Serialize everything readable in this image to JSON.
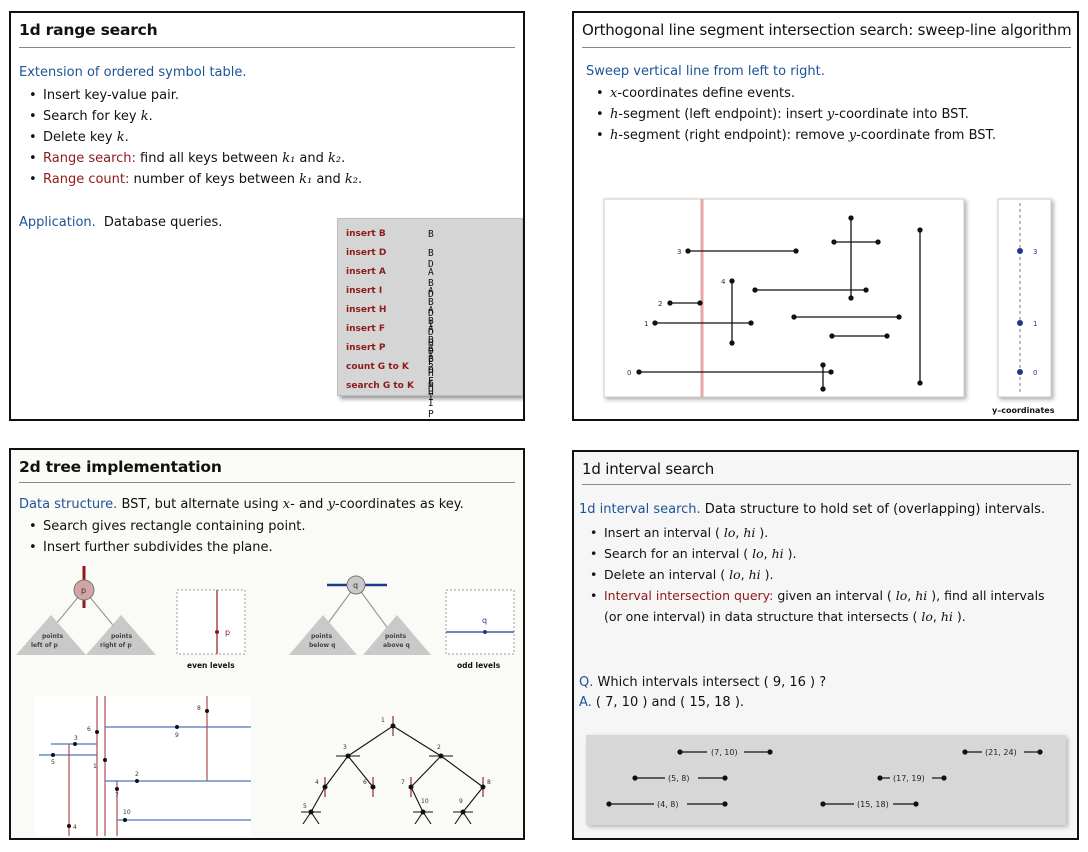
{
  "slide1": {
    "title": "1d range search",
    "lead": "Extension of ordered symbol table.",
    "bullets": [
      {
        "pre": "Insert key-value pair.",
        "k": "",
        "post": "",
        "red": ""
      },
      {
        "pre": "Search for key ",
        "k": "k",
        "post": ".",
        "red": ""
      },
      {
        "pre": "Delete key ",
        "k": "k",
        "post": ".",
        "red": ""
      },
      {
        "red": "Range search:",
        "pre": "  find all keys between ",
        "k": "k₁",
        "mid": " and ",
        "k2": "k₂",
        "post": "."
      },
      {
        "red": "Range count:",
        "pre": "  number of keys between ",
        "k": "k₁",
        "mid": " and ",
        "k2": "k₂",
        "post": "."
      }
    ],
    "app_label": "Application.",
    "app_text": "Database queries.",
    "ops": [
      {
        "cmd": "insert B",
        "res": "B"
      },
      {
        "cmd": "insert D",
        "res": "B D"
      },
      {
        "cmd": "insert A",
        "res": "A B D"
      },
      {
        "cmd": "insert I",
        "res": "A B D I"
      },
      {
        "cmd": "insert H",
        "res": "A B D H I"
      },
      {
        "cmd": "insert F",
        "res": "A B D F H I"
      },
      {
        "cmd": "insert P",
        "res": "A B D F H I P"
      },
      {
        "cmd": "count G to K",
        "res": "2"
      },
      {
        "cmd": "search G to K",
        "res": "H I"
      }
    ]
  },
  "slide2": {
    "title": "Orthogonal line segment intersection search:  sweep-line algorithm",
    "lead": "Sweep vertical line from left to right.",
    "b1_i": "x",
    "b1_text": "-coordinates define events.",
    "b2_i": "h",
    "b2_text1": "-segment (left endpoint):  insert ",
    "b2_i2": "y",
    "b2_text2": "-coordinate into BST.",
    "b3_i": "h",
    "b3_text1": "-segment (right endpoint):  remove ",
    "b3_i2": "y",
    "b3_text2": "-coordinate from BST.",
    "seg_labels": [
      "3",
      "4",
      "2",
      "1",
      "0"
    ],
    "axis_labels": [
      "3",
      "1",
      "0"
    ],
    "axis_caption": "y–coordinates"
  },
  "slide3": {
    "title": "2d tree implementation",
    "lead": "Data structure.",
    "lead_text1": "  BST, but alternate using ",
    "lead_i1": "x",
    "lead_text2": "- and ",
    "lead_i2": "y",
    "lead_text3": "-coordinates as key.",
    "bullets": [
      "Search gives rectangle containing point.",
      "Insert further subdivides the plane."
    ],
    "node_p": "p",
    "node_q": "q",
    "points_left": [
      "points",
      "left of p"
    ],
    "points_right": [
      "points",
      "right of p"
    ],
    "points_below": [
      "points",
      "below q"
    ],
    "points_above": [
      "points",
      "above q"
    ],
    "even_levels": "even levels",
    "odd_levels": "odd levels",
    "point_p": "p",
    "point_q": "q",
    "plane_labels": [
      "8",
      "6",
      "3",
      "9",
      "1",
      "2",
      "5",
      "7",
      "10",
      "4"
    ],
    "tree_labels": [
      "1",
      "3",
      "2",
      "4",
      "6",
      "7",
      "8",
      "5",
      "10",
      "9"
    ]
  },
  "slide4": {
    "title": "1d interval search",
    "lead": "1d interval search.",
    "lead_text": "  Data structure to hold set of (overlapping) intervals.",
    "b1": "Insert an interval ( ",
    "b2": "Search for an interval ( ",
    "b3": "Delete an interval ( ",
    "lo": "lo",
    "hi": "hi",
    "close": " ).",
    "b4_red": "Interval intersection query:",
    "b4_text": "  given an interval ( ",
    "b4_text2": " ), find all intervals",
    "b4_line2": "(or one interval) in data structure that intersects ( ",
    "q_label": "Q.",
    "q_text": "  Which intervals intersect ( 9,  16 ) ?",
    "a_label": "A.",
    "a_text": "  ( 7,  10 ) and ( 15,  18 ).",
    "intervals": [
      "(7, 10)",
      "(21, 24)",
      "(5, 8)",
      "(17, 19)",
      "(4, 8)",
      "(15, 18)"
    ]
  }
}
